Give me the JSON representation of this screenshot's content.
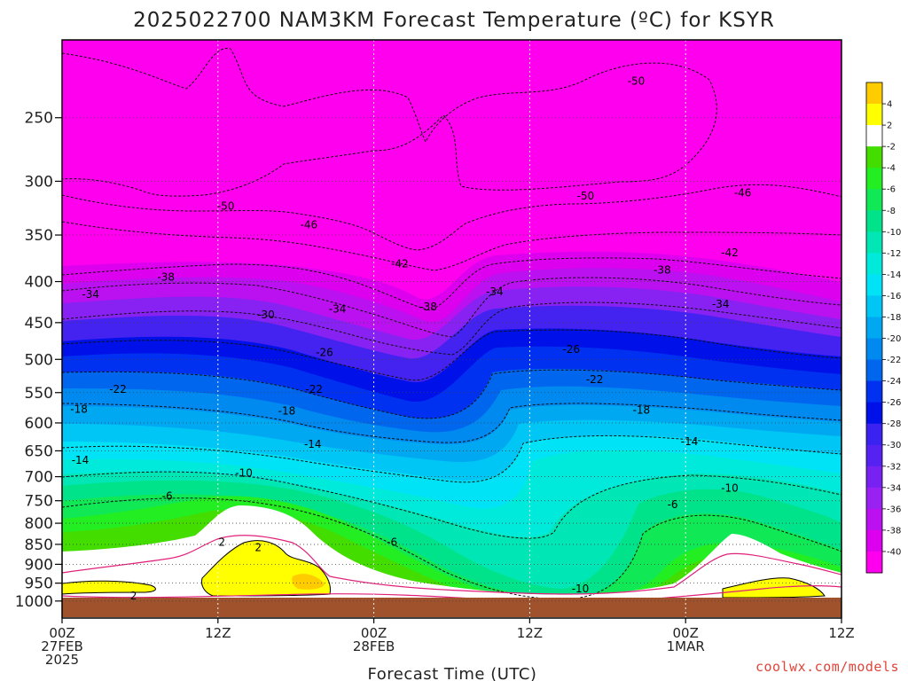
{
  "chart_data": {
    "type": "heatmap",
    "title": "2025022700 NAM3KM Forecast Temperature (ºC) for KSYR",
    "xlabel": "Forecast Time (UTC)",
    "ylabel": "",
    "credit": "coolwx.com/models",
    "y_axis": {
      "scale": "pressure (inverted, log)",
      "range": [
        1050,
        200
      ],
      "ticks": [
        "250",
        "300",
        "350",
        "400",
        "450",
        "500",
        "550",
        "600",
        "650",
        "700",
        "750",
        "800",
        "850",
        "900",
        "950",
        "1000"
      ]
    },
    "x_axis": {
      "range_hours": [
        0,
        60
      ],
      "ticks": [
        {
          "hour": 0,
          "line1": "00Z",
          "line2": "27FEB",
          "line3": "2025"
        },
        {
          "hour": 12,
          "line1": "12Z",
          "line2": "",
          "line3": ""
        },
        {
          "hour": 24,
          "line1": "00Z",
          "line2": "28FEB",
          "line3": ""
        },
        {
          "hour": 36,
          "line1": "12Z",
          "line2": "",
          "line3": ""
        },
        {
          "hour": 48,
          "line1": "00Z",
          "line2": "1MAR",
          "line3": ""
        },
        {
          "hour": 60,
          "line1": "12Z",
          "line2": "",
          "line3": ""
        }
      ]
    },
    "grid": true,
    "colorbar": {
      "placement": "right",
      "bins": [
        {
          "label": "",
          "color": "#ffcc00"
        },
        {
          "label": "4",
          "color": "#ffff00"
        },
        {
          "label": "2",
          "color": "#ffffff"
        },
        {
          "label": "-2",
          "color": "#44dd00"
        },
        {
          "label": "-4",
          "color": "#22ee22"
        },
        {
          "label": "-6",
          "color": "#11e855"
        },
        {
          "label": "-8",
          "color": "#00e38a"
        },
        {
          "label": "-10",
          "color": "#00e6b5"
        },
        {
          "label": "-12",
          "color": "#00eadc"
        },
        {
          "label": "-14",
          "color": "#00e3f7"
        },
        {
          "label": "-16",
          "color": "#00c6f5"
        },
        {
          "label": "-18",
          "color": "#00a8f2"
        },
        {
          "label": "-20",
          "color": "#008af0"
        },
        {
          "label": "-22",
          "color": "#0066ee"
        },
        {
          "label": "-24",
          "color": "#0030f0"
        },
        {
          "label": "-26",
          "color": "#0010e8"
        },
        {
          "label": "-28",
          "color": "#3a22f0"
        },
        {
          "label": "-30",
          "color": "#5522f2"
        },
        {
          "label": "-32",
          "color": "#7722f2"
        },
        {
          "label": "-34",
          "color": "#9922f2"
        },
        {
          "label": "-36",
          "color": "#bb11f0"
        },
        {
          "label": "-38",
          "color": "#dd00ee"
        },
        {
          "label": "-40",
          "color": "#ff00ee"
        }
      ]
    },
    "contour_labels": [
      {
        "value": "-50",
        "hour": 12.6,
        "p": 322
      },
      {
        "value": "-50",
        "hour": 44.2,
        "p": 225
      },
      {
        "value": "-50",
        "hour": 40.3,
        "p": 313
      },
      {
        "value": "-46",
        "hour": 19,
        "p": 340
      },
      {
        "value": "-46",
        "hour": 52.4,
        "p": 310
      },
      {
        "value": "-42",
        "hour": 26,
        "p": 380
      },
      {
        "value": "-42",
        "hour": 51.4,
        "p": 368
      },
      {
        "value": "-38",
        "hour": 8,
        "p": 395
      },
      {
        "value": "-38",
        "hour": 28.2,
        "p": 430
      },
      {
        "value": "-38",
        "hour": 46.2,
        "p": 387
      },
      {
        "value": "-34",
        "hour": 2.2,
        "p": 415
      },
      {
        "value": "-34",
        "hour": 21.2,
        "p": 433
      },
      {
        "value": "-34",
        "hour": 33.3,
        "p": 412
      },
      {
        "value": "-34",
        "hour": 50.7,
        "p": 427
      },
      {
        "value": "-30",
        "hour": 15.7,
        "p": 440
      },
      {
        "value": "-26",
        "hour": 20.2,
        "p": 490
      },
      {
        "value": "-26",
        "hour": 39.2,
        "p": 486
      },
      {
        "value": "-22",
        "hour": 4.3,
        "p": 545
      },
      {
        "value": "-22",
        "hour": 19.4,
        "p": 545
      },
      {
        "value": "-22",
        "hour": 41,
        "p": 530
      },
      {
        "value": "-18",
        "hour": 1.3,
        "p": 577
      },
      {
        "value": "-18",
        "hour": 17.3,
        "p": 580
      },
      {
        "value": "-18",
        "hour": 44.6,
        "p": 578
      },
      {
        "value": "-14",
        "hour": 1.4,
        "p": 668
      },
      {
        "value": "-14",
        "hour": 19.3,
        "p": 638
      },
      {
        "value": "-14",
        "hour": 48.3,
        "p": 633
      },
      {
        "value": "-10",
        "hour": 14,
        "p": 693
      },
      {
        "value": "-10",
        "hour": 51.4,
        "p": 723
      },
      {
        "value": "-10",
        "hour": 39.9,
        "p": 965
      },
      {
        "value": "-6",
        "hour": 8.1,
        "p": 740
      },
      {
        "value": "-6",
        "hour": 47,
        "p": 758
      },
      {
        "value": "-6",
        "hour": 25.4,
        "p": 845
      },
      {
        "value": "2",
        "hour": 12.3,
        "p": 845
      },
      {
        "value": "2",
        "hour": 15.1,
        "p": 858
      },
      {
        "value": "2",
        "hour": 5.5,
        "p": 985
      }
    ]
  }
}
